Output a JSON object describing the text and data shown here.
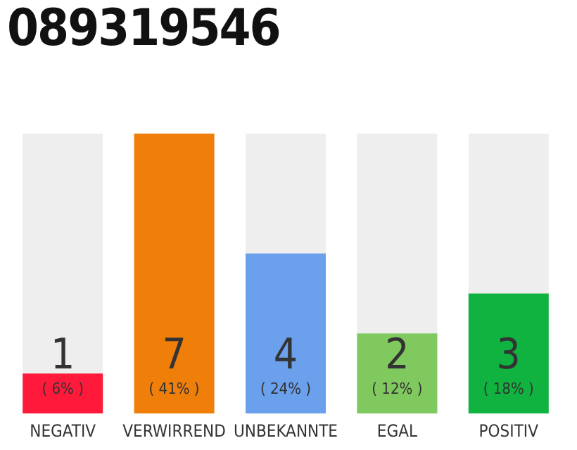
{
  "chart_data": {
    "type": "bar",
    "title": "089319546",
    "categories": [
      "NEGATIV",
      "VERWIRREND",
      "UNBEKANNTE",
      "EGAL",
      "POSITIV"
    ],
    "values": [
      1,
      7,
      4,
      2,
      3
    ],
    "colors": [
      "#ff1a3c",
      "#f07f0a",
      "#6aa0ec",
      "#80c95f",
      "#10b33f"
    ],
    "data_labels": true,
    "annotations": [
      {
        "text": "( 6% )",
        "x": "NEGATIV",
        "y": 0
      },
      {
        "text": "( 41% )",
        "x": "VERWIRREND",
        "y": 0
      },
      {
        "text": "( 24% )",
        "x": "UNBEKANNTE",
        "y": 0
      },
      {
        "text": "( 12% )",
        "x": "EGAL",
        "y": 0
      },
      {
        "text": "( 18% )",
        "x": "POSITIV",
        "y": 0
      }
    ],
    "legend": false
  }
}
